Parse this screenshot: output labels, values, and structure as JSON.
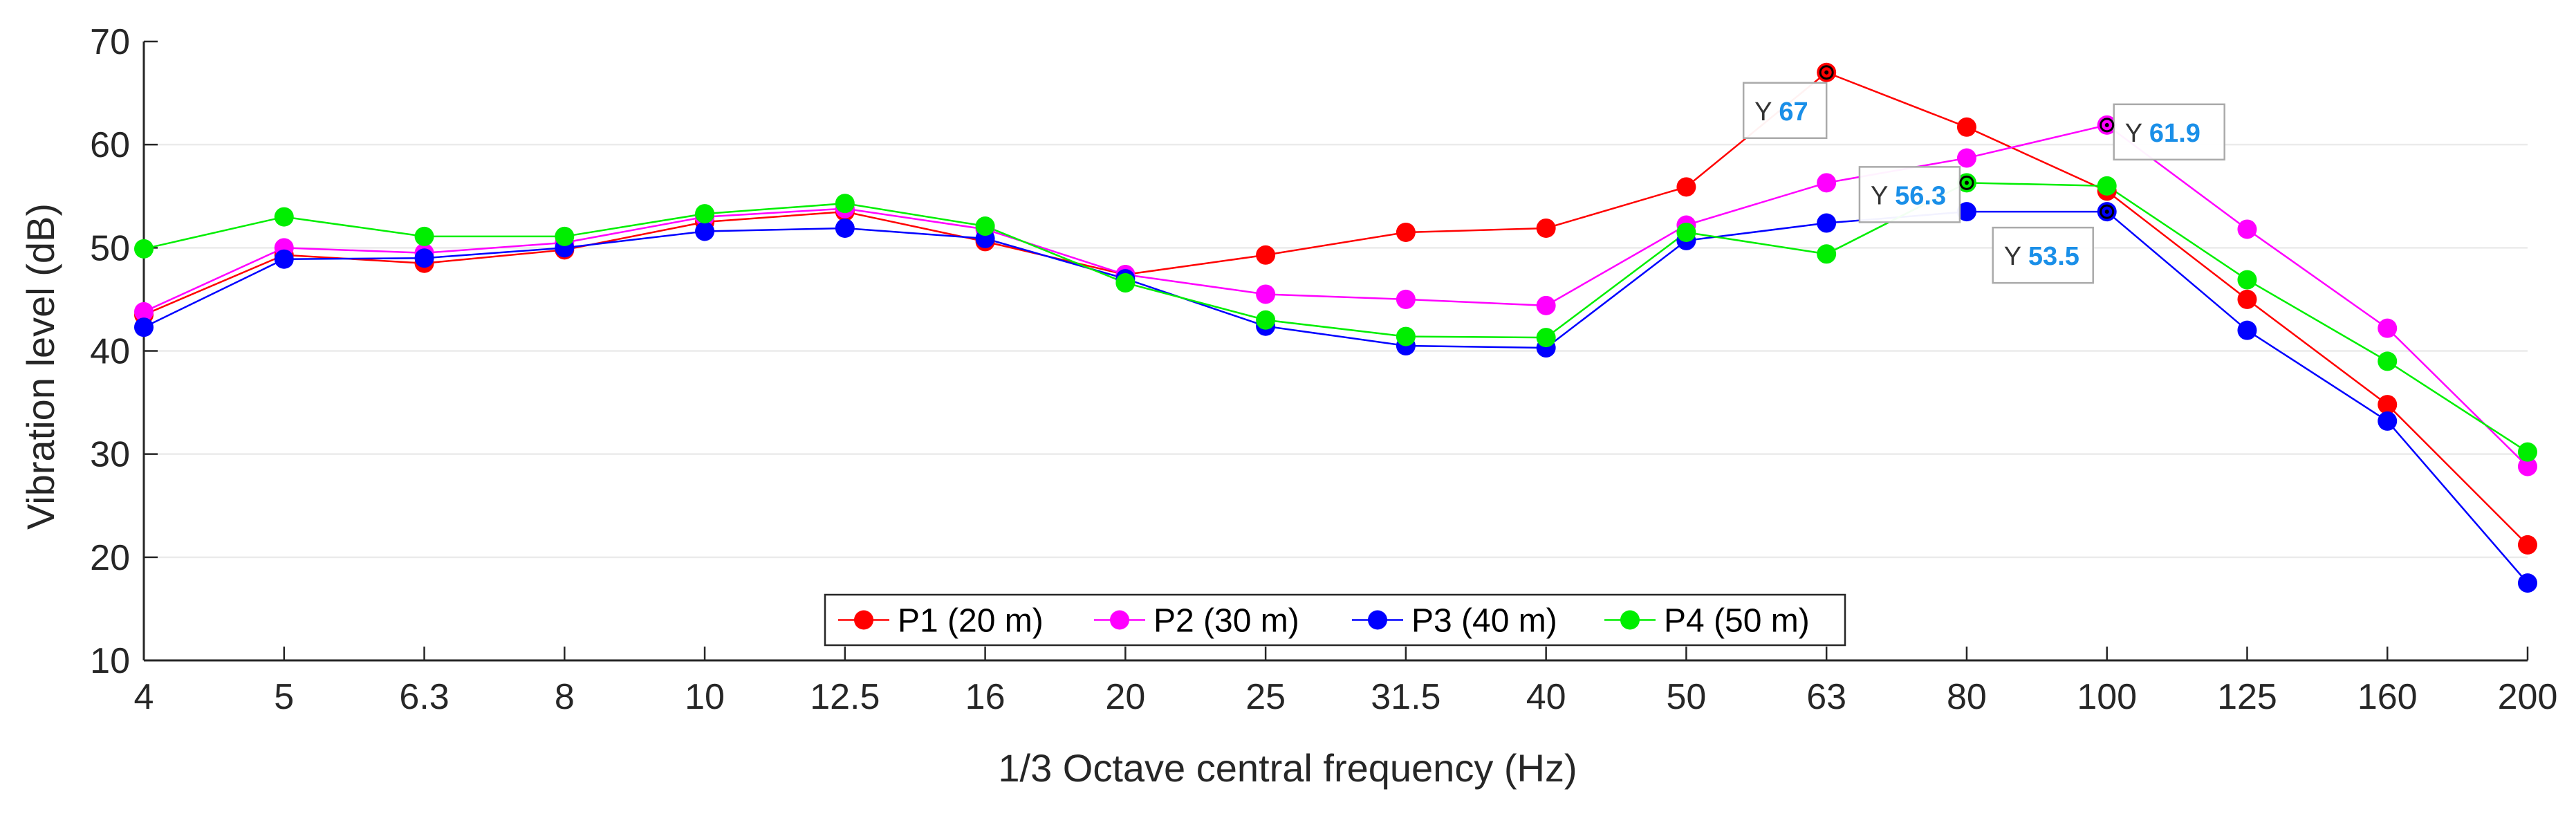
{
  "chart_data": {
    "type": "line",
    "title": "",
    "xlabel": "1/3 Octave central frequency (Hz)",
    "ylabel": "Vibration level (dB)",
    "categories": [
      "4",
      "5",
      "6.3",
      "8",
      "10",
      "12.5",
      "16",
      "20",
      "25",
      "31.5",
      "40",
      "50",
      "63",
      "80",
      "100",
      "125",
      "160",
      "200"
    ],
    "ylim": [
      10,
      70
    ],
    "yticks": [
      "10",
      "20",
      "30",
      "40",
      "50",
      "60",
      "70"
    ],
    "grid": "horizontal",
    "legend": "bottom-center, horizontal",
    "series": [
      {
        "name": "P1 (20 m)",
        "color": "#ff0000",
        "values": [
          43.5,
          49.3,
          48.5,
          49.8,
          52.5,
          53.5,
          50.6,
          47.4,
          49.3,
          51.5,
          51.9,
          55.9,
          67.0,
          61.7,
          55.5,
          45.0,
          34.8,
          21.2
        ]
      },
      {
        "name": "P2 (30 m)",
        "color": "#ff00ff",
        "values": [
          43.8,
          50.0,
          49.5,
          50.5,
          53.0,
          53.8,
          51.8,
          47.4,
          45.5,
          45.0,
          44.4,
          52.2,
          56.3,
          58.7,
          61.9,
          51.8,
          42.2,
          28.8
        ]
      },
      {
        "name": "P3 (40 m)",
        "color": "#0000ff",
        "values": [
          42.3,
          48.9,
          49.0,
          50.0,
          51.6,
          51.9,
          50.9,
          47.0,
          42.4,
          40.5,
          40.3,
          50.7,
          52.4,
          53.5,
          53.5,
          42.0,
          33.2,
          17.5
        ]
      },
      {
        "name": "P4 (50 m)",
        "color": "#00ee00",
        "values": [
          49.9,
          53.0,
          51.1,
          51.1,
          53.3,
          54.3,
          52.1,
          46.6,
          43.0,
          41.4,
          41.3,
          51.5,
          49.4,
          56.3,
          56.0,
          46.9,
          39.0,
          30.2
        ]
      }
    ],
    "annotations": [
      {
        "label": "Y",
        "value": "67",
        "series": "P1 (20 m)",
        "x": "63",
        "y": 67.0
      },
      {
        "label": "Y",
        "value": "61.9",
        "series": "P2 (30 m)",
        "x": "100",
        "y": 61.9
      },
      {
        "label": "Y",
        "value": "56.3",
        "series": "P4 (50 m)",
        "x": "80",
        "y": 56.3
      },
      {
        "label": "Y",
        "value": "53.5",
        "series": "P3 (40 m)",
        "x": "100",
        "y": 53.5
      }
    ]
  }
}
